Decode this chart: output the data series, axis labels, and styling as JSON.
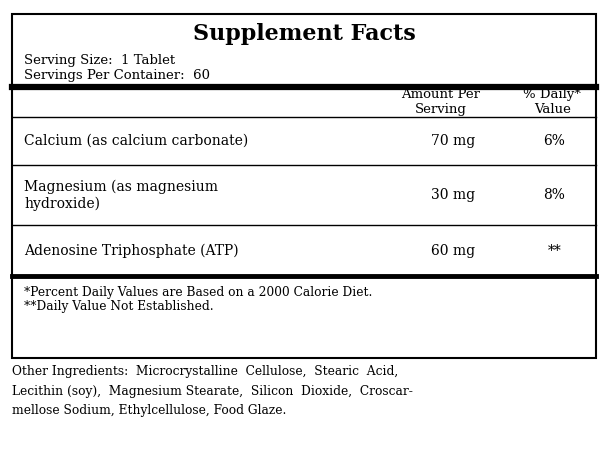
{
  "title": "Supplement Facts",
  "serving_size": "Serving Size:  1 Tablet",
  "servings_per_container": "Servings Per Container:  60",
  "col_header1": "Amount Per\nServing",
  "col_header2": "% Daily*\nValue",
  "nutrients": [
    {
      "name": "Calcium (as calcium carbonate)",
      "amount": "70 mg",
      "daily_value": "6%"
    },
    {
      "name": "Magnesium (as magnesium\nhydroxide)",
      "amount": "30 mg",
      "daily_value": "8%"
    },
    {
      "name": "Adenosine Triphosphate (ATP)",
      "amount": "60 mg",
      "daily_value": "**"
    }
  ],
  "footnote1": "*Percent Daily Values are Based on a 2000 Calorie Diet.",
  "footnote2": "**Daily Value Not Established.",
  "other_ingredients": "Other Ingredients:  Microcrystalline  Cellulose,  Stearic  Acid,\nLecithin (soy),  Magnesium Stearate,  Silicon  Dioxide,  Croscar-\nmellose Sodium, Ethylcellulose, Food Glaze.",
  "bg_color": "#ffffff",
  "border_color": "#000000",
  "text_color": "#000000"
}
